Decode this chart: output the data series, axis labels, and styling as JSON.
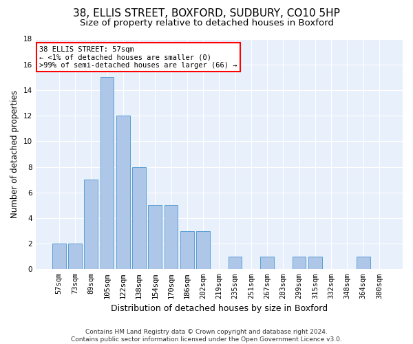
{
  "title1": "38, ELLIS STREET, BOXFORD, SUDBURY, CO10 5HP",
  "title2": "Size of property relative to detached houses in Boxford",
  "xlabel": "Distribution of detached houses by size in Boxford",
  "ylabel": "Number of detached properties",
  "categories": [
    "57sqm",
    "73sqm",
    "89sqm",
    "105sqm",
    "122sqm",
    "138sqm",
    "154sqm",
    "170sqm",
    "186sqm",
    "202sqm",
    "219sqm",
    "235sqm",
    "251sqm",
    "267sqm",
    "283sqm",
    "299sqm",
    "315sqm",
    "332sqm",
    "348sqm",
    "364sqm",
    "380sqm"
  ],
  "values": [
    2,
    2,
    7,
    15,
    12,
    8,
    5,
    5,
    3,
    3,
    0,
    1,
    0,
    1,
    0,
    1,
    1,
    0,
    0,
    1,
    0
  ],
  "bar_color": "#aec6e8",
  "bar_edge_color": "#5a9fd4",
  "annotation_text": "38 ELLIS STREET: 57sqm\n← <1% of detached houses are smaller (0)\n>99% of semi-detached houses are larger (66) →",
  "annotation_box_color": "white",
  "annotation_box_edge_color": "red",
  "ylim": [
    0,
    18
  ],
  "yticks": [
    0,
    2,
    4,
    6,
    8,
    10,
    12,
    14,
    16,
    18
  ],
  "background_color": "#e8f0fb",
  "grid_color": "#ffffff",
  "footer_text": "Contains HM Land Registry data © Crown copyright and database right 2024.\nContains public sector information licensed under the Open Government Licence v3.0.",
  "title1_fontsize": 11,
  "title2_fontsize": 9.5,
  "xlabel_fontsize": 9,
  "ylabel_fontsize": 8.5,
  "tick_fontsize": 7.5,
  "annotation_fontsize": 7.5,
  "footer_fontsize": 6.5
}
